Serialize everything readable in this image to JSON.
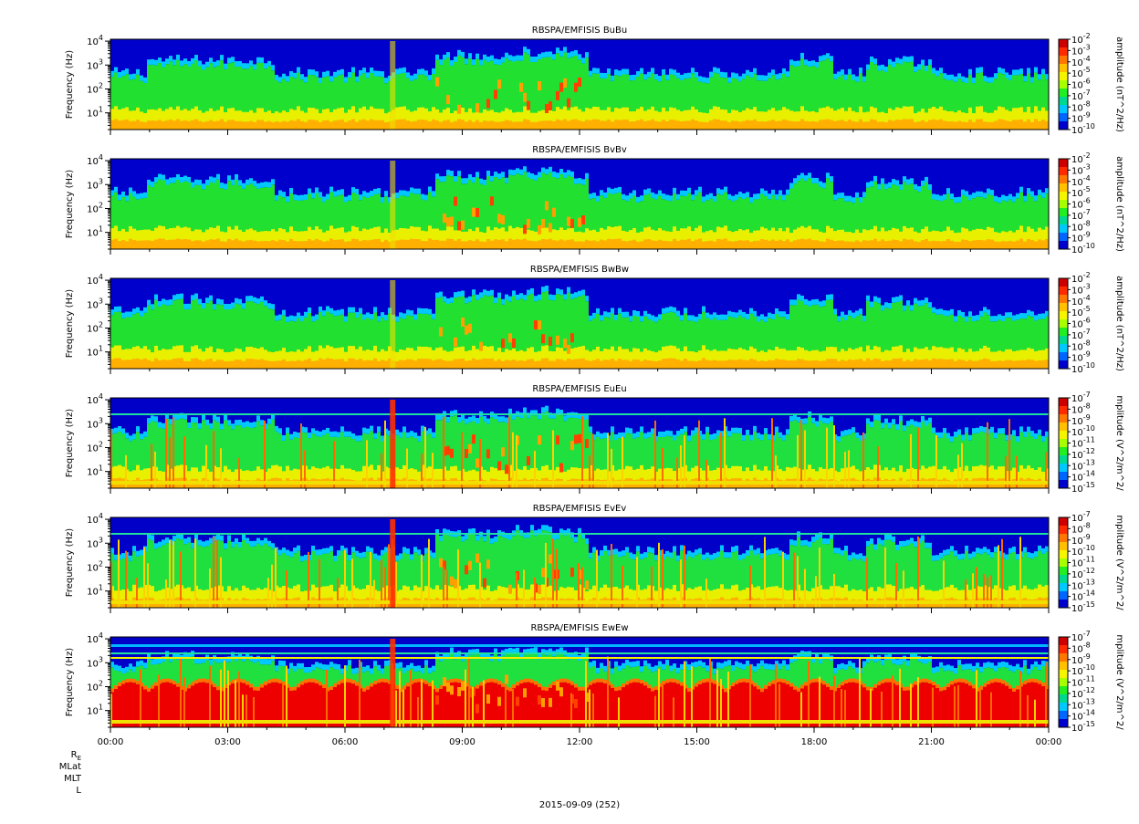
{
  "chart_data": [
    {
      "type": "heatmap",
      "title": "RBSPA/EMFISIS  BuBu",
      "ylabel": "Frequency (Hz)",
      "yscale": "log",
      "ylim": [
        2,
        12000
      ],
      "yticks": [
        {
          "base": "10",
          "exp": "1"
        },
        {
          "base": "10",
          "exp": "2"
        },
        {
          "base": "10",
          "exp": "3"
        },
        {
          "base": "10",
          "exp": "4"
        }
      ],
      "colorbar": {
        "label": "amplitude (nT^2/Hz)",
        "scale": "log",
        "ticks": [
          {
            "base": "10",
            "exp": "-2"
          },
          {
            "base": "10",
            "exp": "-3"
          },
          {
            "base": "10",
            "exp": "-4"
          },
          {
            "base": "10",
            "exp": "-5"
          },
          {
            "base": "10",
            "exp": "-6"
          },
          {
            "base": "10",
            "exp": "-7"
          },
          {
            "base": "10",
            "exp": "-8"
          },
          {
            "base": "10",
            "exp": "-9"
          },
          {
            "base": "10",
            "exp": "-10"
          }
        ]
      }
    },
    {
      "type": "heatmap",
      "title": "RBSPA/EMFISIS  BvBv",
      "ylabel": "Frequency (Hz)",
      "yscale": "log",
      "ylim": [
        2,
        12000
      ],
      "yticks": [
        {
          "base": "10",
          "exp": "1"
        },
        {
          "base": "10",
          "exp": "2"
        },
        {
          "base": "10",
          "exp": "3"
        },
        {
          "base": "10",
          "exp": "4"
        }
      ],
      "colorbar": {
        "label": "amplitude (nT^2/Hz)",
        "scale": "log",
        "ticks": [
          {
            "base": "10",
            "exp": "-2"
          },
          {
            "base": "10",
            "exp": "-3"
          },
          {
            "base": "10",
            "exp": "-4"
          },
          {
            "base": "10",
            "exp": "-5"
          },
          {
            "base": "10",
            "exp": "-6"
          },
          {
            "base": "10",
            "exp": "-7"
          },
          {
            "base": "10",
            "exp": "-8"
          },
          {
            "base": "10",
            "exp": "-9"
          },
          {
            "base": "10",
            "exp": "-10"
          }
        ]
      }
    },
    {
      "type": "heatmap",
      "title": "RBSPA/EMFISIS  BwBw",
      "ylabel": "Frequency (Hz)",
      "yscale": "log",
      "ylim": [
        2,
        12000
      ],
      "yticks": [
        {
          "base": "10",
          "exp": "1"
        },
        {
          "base": "10",
          "exp": "2"
        },
        {
          "base": "10",
          "exp": "3"
        },
        {
          "base": "10",
          "exp": "4"
        }
      ],
      "colorbar": {
        "label": "amplitude (nT^2/Hz)",
        "scale": "log",
        "ticks": [
          {
            "base": "10",
            "exp": "-2"
          },
          {
            "base": "10",
            "exp": "-3"
          },
          {
            "base": "10",
            "exp": "-4"
          },
          {
            "base": "10",
            "exp": "-5"
          },
          {
            "base": "10",
            "exp": "-6"
          },
          {
            "base": "10",
            "exp": "-7"
          },
          {
            "base": "10",
            "exp": "-8"
          },
          {
            "base": "10",
            "exp": "-9"
          },
          {
            "base": "10",
            "exp": "-10"
          }
        ]
      }
    },
    {
      "type": "heatmap",
      "title": "RBSPA/EMFISIS  EuEu",
      "ylabel": "Frequency (Hz)",
      "yscale": "log",
      "ylim": [
        2,
        12000
      ],
      "yticks": [
        {
          "base": "10",
          "exp": "1"
        },
        {
          "base": "10",
          "exp": "2"
        },
        {
          "base": "10",
          "exp": "3"
        },
        {
          "base": "10",
          "exp": "4"
        }
      ],
      "colorbar": {
        "label": "mplitude (V^2/m^2/",
        "scale": "log",
        "ticks": [
          {
            "base": "10",
            "exp": "-7"
          },
          {
            "base": "10",
            "exp": "-8"
          },
          {
            "base": "10",
            "exp": "-9"
          },
          {
            "base": "10",
            "exp": "-10"
          },
          {
            "base": "10",
            "exp": "-11"
          },
          {
            "base": "10",
            "exp": "-12"
          },
          {
            "base": "10",
            "exp": "-13"
          },
          {
            "base": "10",
            "exp": "-14"
          },
          {
            "base": "10",
            "exp": "-15"
          }
        ]
      }
    },
    {
      "type": "heatmap",
      "title": "RBSPA/EMFISIS  EvEv",
      "ylabel": "Frequency (Hz)",
      "yscale": "log",
      "ylim": [
        2,
        12000
      ],
      "yticks": [
        {
          "base": "10",
          "exp": "1"
        },
        {
          "base": "10",
          "exp": "2"
        },
        {
          "base": "10",
          "exp": "3"
        },
        {
          "base": "10",
          "exp": "4"
        }
      ],
      "colorbar": {
        "label": "mplitude (V^2/m^2/",
        "scale": "log",
        "ticks": [
          {
            "base": "10",
            "exp": "-7"
          },
          {
            "base": "10",
            "exp": "-8"
          },
          {
            "base": "10",
            "exp": "-9"
          },
          {
            "base": "10",
            "exp": "-10"
          },
          {
            "base": "10",
            "exp": "-11"
          },
          {
            "base": "10",
            "exp": "-12"
          },
          {
            "base": "10",
            "exp": "-13"
          },
          {
            "base": "10",
            "exp": "-14"
          },
          {
            "base": "10",
            "exp": "-15"
          }
        ]
      }
    },
    {
      "type": "heatmap",
      "title": "RBSPA/EMFISIS  EwEw",
      "ylabel": "Frequency (Hz)",
      "yscale": "log",
      "ylim": [
        2,
        12000
      ],
      "yticks": [
        {
          "base": "10",
          "exp": "1"
        },
        {
          "base": "10",
          "exp": "2"
        },
        {
          "base": "10",
          "exp": "3"
        },
        {
          "base": "10",
          "exp": "4"
        }
      ],
      "colorbar": {
        "label": "mplitude (V^2/m^2/",
        "scale": "log",
        "ticks": [
          {
            "base": "10",
            "exp": "-7"
          },
          {
            "base": "10",
            "exp": "-8"
          },
          {
            "base": "10",
            "exp": "-9"
          },
          {
            "base": "10",
            "exp": "-10"
          },
          {
            "base": "10",
            "exp": "-11"
          },
          {
            "base": "10",
            "exp": "-12"
          },
          {
            "base": "10",
            "exp": "-13"
          },
          {
            "base": "10",
            "exp": "-14"
          },
          {
            "base": "10",
            "exp": "-15"
          }
        ]
      }
    }
  ],
  "time_axis": {
    "ticks": [
      "00:00",
      "03:00",
      "06:00",
      "09:00",
      "12:00",
      "15:00",
      "18:00",
      "21:00",
      "00:00"
    ]
  },
  "ephemeris_labels": [
    {
      "text": "R",
      "sub": "E"
    },
    {
      "text": "MLat",
      "sub": ""
    },
    {
      "text": "MLT",
      "sub": ""
    },
    {
      "text": "L",
      "sub": ""
    }
  ],
  "date_label": "2015-09-09 (252)",
  "palette": {
    "colorbar_top_to_bottom": [
      "#cc0000",
      "#ff2a00",
      "#ff7700",
      "#ffc000",
      "#f5f500",
      "#a8ff00",
      "#22ee22",
      "#00d890",
      "#00c8ff",
      "#0066ff",
      "#0000cc"
    ]
  }
}
